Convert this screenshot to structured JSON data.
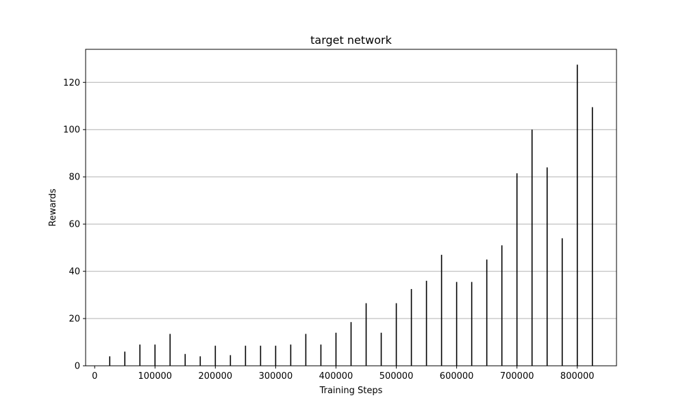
{
  "chart_data": {
    "type": "bar",
    "title": "target network",
    "xlabel": "Training Steps",
    "ylabel": "Rewards",
    "xlim": [
      -15000,
      865000
    ],
    "ylim": [
      0,
      134
    ],
    "xticks": [
      0,
      100000,
      200000,
      300000,
      400000,
      500000,
      600000,
      700000,
      800000
    ],
    "xtick_labels": [
      "0",
      "100000",
      "200000",
      "300000",
      "400000",
      "500000",
      "600000",
      "700000",
      "800000"
    ],
    "yticks": [
      0,
      20,
      40,
      60,
      80,
      100,
      120
    ],
    "ytick_labels": [
      "0",
      "20",
      "40",
      "60",
      "80",
      "100",
      "120"
    ],
    "grid": "y-axis",
    "bar_color": "#000000",
    "grid_color": "#b0b0b0",
    "x": [
      25000,
      50000,
      75000,
      100000,
      125000,
      150000,
      175000,
      200000,
      225000,
      250000,
      275000,
      300000,
      325000,
      350000,
      375000,
      400000,
      425000,
      450000,
      475000,
      500000,
      525000,
      550000,
      575000,
      600000,
      625000,
      650000,
      675000,
      700000,
      725000,
      750000,
      775000,
      800000,
      825000
    ],
    "values": [
      4,
      6,
      9,
      9,
      13.5,
      5,
      4,
      8.5,
      4.5,
      8.5,
      8.5,
      8.5,
      9,
      13.5,
      9,
      14,
      18.5,
      26.5,
      14,
      26.5,
      32.5,
      36,
      47,
      35.5,
      35.5,
      45,
      51,
      81.5,
      100,
      84,
      54,
      127.5,
      109.5
    ]
  }
}
